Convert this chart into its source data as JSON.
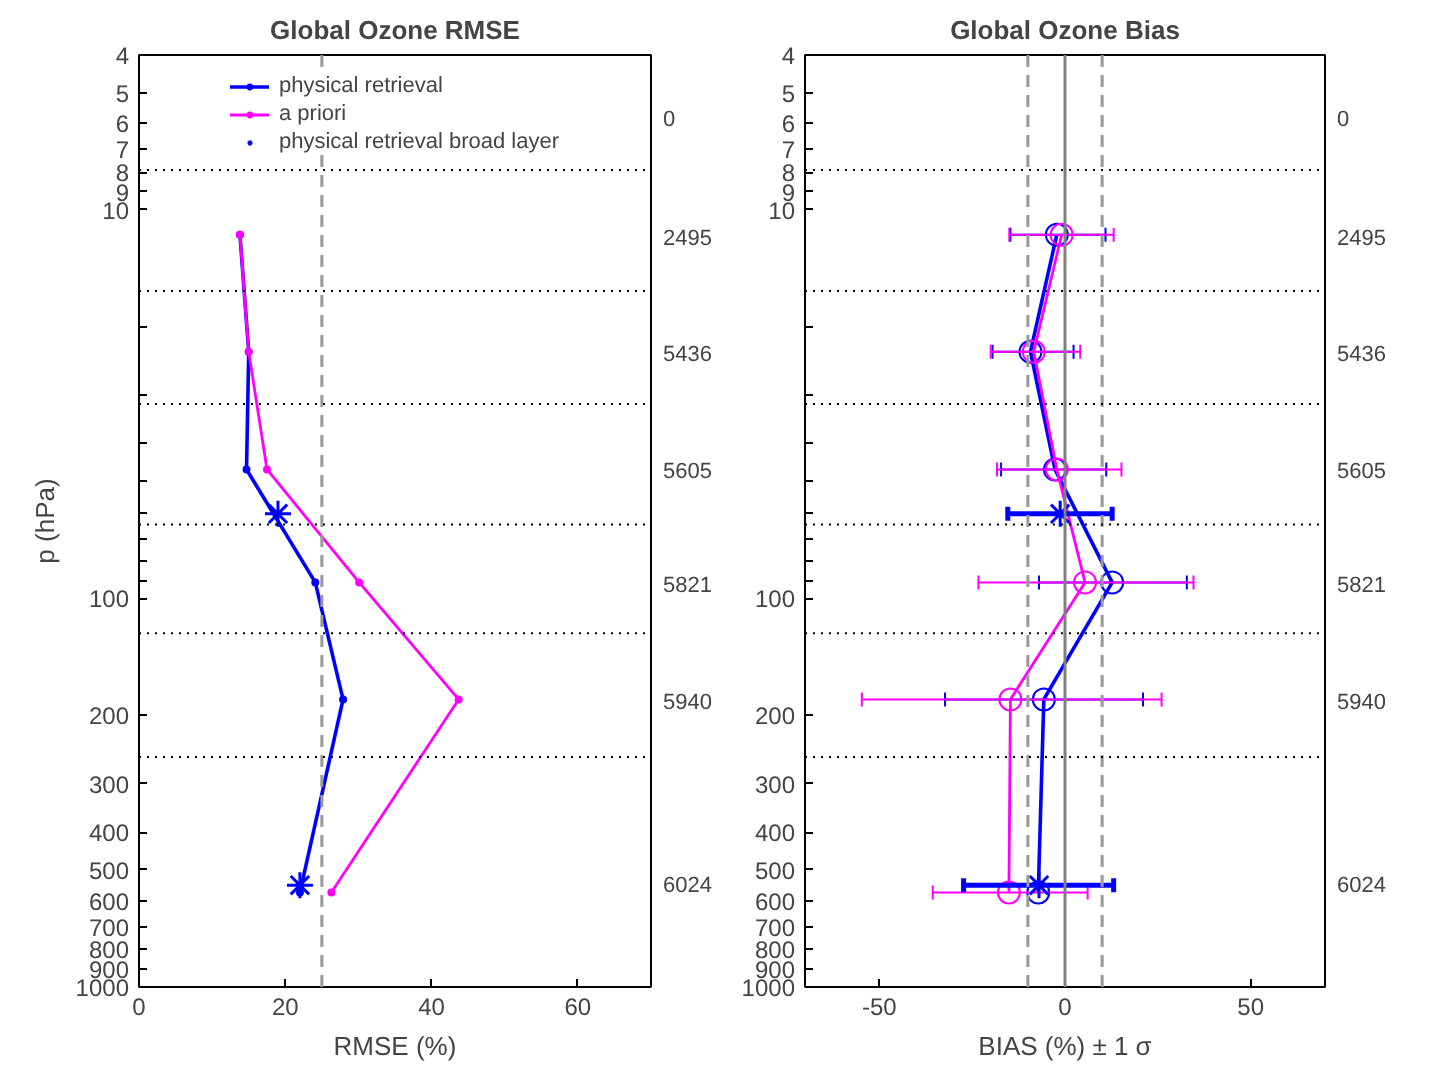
{
  "chart_data": [
    {
      "type": "line",
      "title": "Global Ozone RMSE",
      "xlabel": "RMSE (%)",
      "ylabel": "p (hPa)",
      "xlim": [
        0,
        70
      ],
      "xticks": [
        0,
        20,
        40,
        60
      ],
      "ylim": [
        1000,
        4
      ],
      "yticks": [
        4,
        5,
        6,
        7,
        8,
        9,
        10,
        {
          "value": 20,
          "label": null
        },
        {
          "value": 30,
          "label": null
        },
        {
          "value": 40,
          "label": null
        },
        {
          "value": 50,
          "label": null
        },
        {
          "value": 60,
          "label": null
        },
        {
          "value": 70,
          "label": null
        },
        {
          "value": 80,
          "label": null
        },
        {
          "value": 90,
          "label": null
        },
        100,
        200,
        300,
        400,
        500,
        600,
        700,
        800,
        900,
        1000
      ],
      "log": "y",
      "grid": false,
      "legend": "top",
      "line_style": "solid",
      "series": [
        {
          "name": "physical retrieval",
          "marker": "circle",
          "color": "#0000ff",
          "x": [
            13.8,
            15.0,
            14.7,
            24.1,
            27.9,
            22.0
          ],
          "values": [
            11.6,
            23.2,
            46.6,
            91,
            182,
            571
          ]
        },
        {
          "name": "a priori",
          "marker": "circle",
          "color": "#ff00ff",
          "x": [
            13.8,
            15.0,
            17.5,
            30.1,
            43.7,
            26.3
          ],
          "values": [
            11.6,
            23.2,
            46.6,
            91,
            182,
            571
          ]
        },
        {
          "name": "physical retrieval broad layer",
          "type": "scatter",
          "marker": "cross",
          "color": "#0000ff",
          "x": [
            19.0,
            22.0
          ],
          "values": [
            60.6,
            547
          ]
        }
      ],
      "ref_lines": [
        {
          "axis": "x",
          "value": 25,
          "color": "#999999",
          "line_style": "dashed"
        },
        {
          "axis": "y",
          "value": 7.9,
          "color": "#000000",
          "line_style": "dotted"
        },
        {
          "axis": "y",
          "value": 16.2,
          "color": "#000000",
          "line_style": "dotted"
        },
        {
          "axis": "y",
          "value": 31.6,
          "color": "#000000",
          "line_style": "dotted"
        },
        {
          "axis": "y",
          "value": 64.6,
          "color": "#000000",
          "line_style": "dotted"
        },
        {
          "axis": "y",
          "value": 123,
          "color": "#000000",
          "line_style": "dotted"
        },
        {
          "axis": "y",
          "value": 256,
          "color": "#000000",
          "line_style": "dotted"
        }
      ],
      "annotations": [
        "0",
        "2495",
        "5436",
        "5605",
        "5821",
        "5940",
        "6024"
      ]
    },
    {
      "type": "line",
      "title": "Global Ozone Bias",
      "xlabel": "BIAS (%) ± 1 σ",
      "xlim": [
        -70,
        70
      ],
      "xticks": [
        -50,
        0,
        50
      ],
      "ylim": [
        1000,
        4
      ],
      "yticks": [
        4,
        5,
        6,
        7,
        8,
        9,
        10,
        {
          "value": 20,
          "label": null
        },
        {
          "value": 30,
          "label": null
        },
        {
          "value": 40,
          "label": null
        },
        {
          "value": 50,
          "label": null
        },
        {
          "value": 60,
          "label": null
        },
        {
          "value": 70,
          "label": null
        },
        {
          "value": 80,
          "label": null
        },
        {
          "value": 90,
          "label": null
        },
        100,
        200,
        300,
        400,
        500,
        600,
        700,
        800,
        900,
        1000
      ],
      "log": "y",
      "grid": false,
      "line_style": "solid",
      "series": [
        {
          "marker": "circle",
          "color": "#0000ff",
          "x": [
            -2.2,
            -9.3,
            -2.7,
            12.7,
            -5.7,
            -7.2
          ],
          "values": [
            11.6,
            23.2,
            46.6,
            91,
            182,
            571
          ],
          "xerrors": [
            [
              -14.7,
              10.9
            ],
            [
              -19.5,
              2.3
            ],
            [
              -17.2,
              11.1
            ],
            [
              -7,
              32.8
            ],
            [
              -32.3,
              21
            ],
            null
          ]
        },
        {
          "marker": "circle",
          "color": "#ff00ff",
          "x": [
            -0.9,
            -8.4,
            -2.2,
            5.4,
            -14.7,
            -15.1
          ],
          "values": [
            11.6,
            23.2,
            46.6,
            91,
            182,
            571
          ],
          "xerrors": [
            [
              -15,
              13.1
            ],
            [
              -20,
              4.1
            ],
            [
              -18.3,
              15.2
            ],
            [
              -23.3,
              34.6
            ],
            [
              -54.7,
              26
            ],
            [
              -35.6,
              6.1
            ]
          ]
        },
        {
          "type": "scatter",
          "marker": "cross",
          "color": "#0000ff",
          "x": [
            -1.3,
            -7.0
          ],
          "values": [
            60.6,
            547
          ],
          "xerrors": [
            [
              -15.4,
              12.7
            ],
            [
              -27.3,
              13.1
            ]
          ]
        }
      ],
      "ref_lines": [
        {
          "axis": "x",
          "value": -10,
          "color": "#999999",
          "line_style": "dashed"
        },
        {
          "axis": "x",
          "value": 10,
          "color": "#999999",
          "line_style": "dashed"
        },
        {
          "axis": "x",
          "value": 0,
          "color": "#808080",
          "line_style": "solid"
        },
        {
          "axis": "y",
          "value": 7.9,
          "color": "#000000",
          "line_style": "dotted"
        },
        {
          "axis": "y",
          "value": 16.2,
          "color": "#000000",
          "line_style": "dotted"
        },
        {
          "axis": "y",
          "value": 31.6,
          "color": "#000000",
          "line_style": "dotted"
        },
        {
          "axis": "y",
          "value": 64.6,
          "color": "#000000",
          "line_style": "dotted"
        },
        {
          "axis": "y",
          "value": 123,
          "color": "#000000",
          "line_style": "dotted"
        },
        {
          "axis": "y",
          "value": 256,
          "color": "#000000",
          "line_style": "dotted"
        }
      ],
      "annotations": [
        "0",
        "2495",
        "5436",
        "5605",
        "5821",
        "5940",
        "6024"
      ]
    }
  ]
}
